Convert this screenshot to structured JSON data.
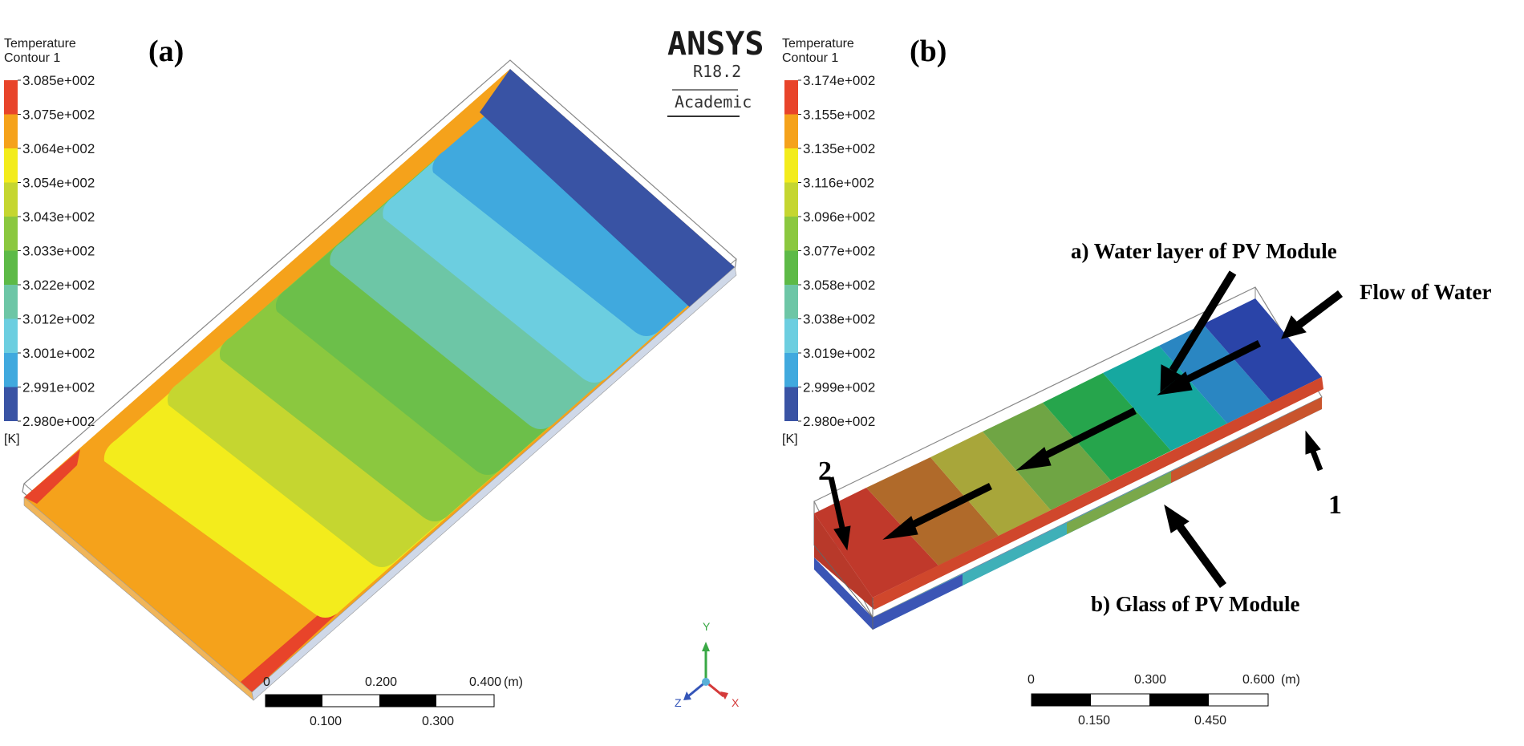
{
  "panel_a": {
    "label": "(a)",
    "legend": {
      "title_line1": "Temperature",
      "title_line2": "Contour 1",
      "unit": "[K]",
      "values": [
        "3.085e+002",
        "3.075e+002",
        "3.064e+002",
        "3.054e+002",
        "3.043e+002",
        "3.033e+002",
        "3.022e+002",
        "3.012e+002",
        "3.001e+002",
        "2.991e+002",
        "2.980e+002"
      ],
      "colors": [
        "#e8442a",
        "#f5a21b",
        "#f3ec1c",
        "#c5d630",
        "#8bc83f",
        "#5dba47",
        "#6dc6a6",
        "#6ccee0",
        "#40a9de",
        "#3b82c8",
        "#3953a4"
      ]
    },
    "scale": {
      "ticks_top": [
        "0",
        "0.200",
        "0.400"
      ],
      "unit": "(m)",
      "ticks_bottom": [
        "0.100",
        "0.300"
      ]
    }
  },
  "panel_b": {
    "label": "(b)",
    "legend": {
      "title_line1": "Temperature",
      "title_line2": "Contour 1",
      "unit": "[K]",
      "values": [
        "3.174e+002",
        "3.155e+002",
        "3.135e+002",
        "3.116e+002",
        "3.096e+002",
        "3.077e+002",
        "3.058e+002",
        "3.038e+002",
        "3.019e+002",
        "2.999e+002",
        "2.980e+002"
      ],
      "colors": [
        "#e8442a",
        "#f5a21b",
        "#f3ec1c",
        "#c5d630",
        "#8bc83f",
        "#5dba47",
        "#6dc6a6",
        "#6ccee0",
        "#40a9de",
        "#3b82c8",
        "#3953a4"
      ]
    },
    "annotations": {
      "water_layer": "a) Water layer of PV Module",
      "flow": "Flow of Water",
      "glass": "b) Glass of PV Module",
      "marker_1": "1",
      "marker_2": "2"
    },
    "scale": {
      "ticks_top": [
        "0",
        "0.300",
        "0.600"
      ],
      "unit": "(m)",
      "ticks_bottom": [
        "0.150",
        "0.450"
      ]
    }
  },
  "logo": {
    "name": "ANSYS",
    "version": "R18.2",
    "edition": "Academic"
  },
  "triad": {
    "y": "Y",
    "z": "Z",
    "x": "X"
  }
}
